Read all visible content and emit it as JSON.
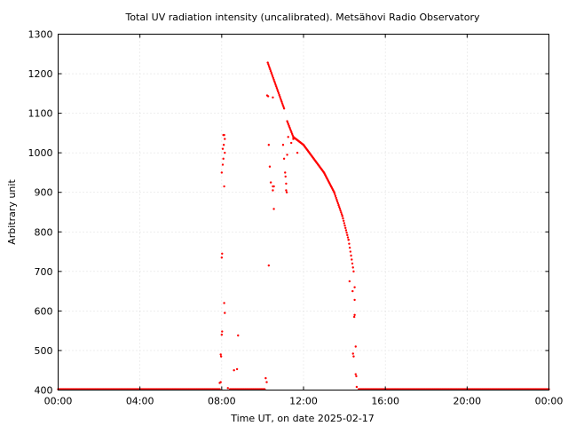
{
  "chart_data": {
    "type": "scatter",
    "title": "Total UV radiation intensity (uncalibrated). Metsähovi Radio Observatory",
    "xlabel": "Time UT, on date 2025-02-17",
    "ylabel": "Arbitrary unit",
    "x_unit": "hours UT",
    "xlim": [
      0,
      24
    ],
    "ylim": [
      400,
      1300
    ],
    "x_ticks": [
      0,
      4,
      8,
      12,
      16,
      20,
      24
    ],
    "x_tick_labels": [
      "00:00",
      "04:00",
      "08:00",
      "12:00",
      "16:00",
      "20:00",
      "00:00"
    ],
    "y_ticks": [
      400,
      500,
      600,
      700,
      800,
      900,
      1000,
      1100,
      1200,
      1300
    ],
    "y_tick_labels": [
      "400",
      "500",
      "600",
      "700",
      "800",
      "900",
      "1000",
      "1100",
      "1200",
      "1300"
    ],
    "grid": true,
    "point_color": "#ff0000",
    "series": [
      {
        "points": [
          [
            7.95,
            490
          ],
          [
            7.97,
            485
          ],
          [
            8.0,
            540
          ],
          [
            8.02,
            548
          ],
          [
            8.0,
            735
          ],
          [
            8.02,
            745
          ],
          [
            8.0,
            950
          ],
          [
            8.05,
            970
          ],
          [
            8.08,
            985
          ],
          [
            8.05,
            1010
          ],
          [
            8.1,
            1020
          ],
          [
            8.08,
            1045
          ],
          [
            8.12,
            1045
          ],
          [
            8.15,
            1035
          ],
          [
            8.15,
            1000
          ],
          [
            8.12,
            915
          ],
          [
            8.12,
            620
          ],
          [
            8.15,
            595
          ],
          [
            8.6,
            450
          ],
          [
            8.75,
            453
          ],
          [
            8.8,
            538
          ],
          [
            7.9,
            418
          ],
          [
            7.95,
            420
          ],
          [
            8.3,
            405
          ],
          [
            10.15,
            430
          ],
          [
            10.2,
            420
          ],
          [
            10.22,
            1145
          ],
          [
            10.27,
            1143
          ],
          [
            10.3,
            1020
          ],
          [
            10.3,
            715
          ],
          [
            10.35,
            965
          ],
          [
            10.4,
            925
          ],
          [
            10.5,
            915
          ],
          [
            10.5,
            905
          ],
          [
            10.55,
            915
          ],
          [
            10.55,
            858
          ],
          [
            10.5,
            1140
          ],
          [
            11.0,
            1020
          ],
          [
            11.05,
            985
          ],
          [
            11.1,
            950
          ],
          [
            11.12,
            940
          ],
          [
            11.15,
            922
          ],
          [
            11.15,
            905
          ],
          [
            11.18,
            900
          ],
          [
            11.2,
            995
          ],
          [
            11.25,
            1040
          ],
          [
            11.4,
            1025
          ],
          [
            11.5,
            1035
          ],
          [
            11.7,
            1000
          ],
          [
            14.25,
            675
          ],
          [
            14.4,
            650
          ],
          [
            14.5,
            660
          ],
          [
            14.5,
            628
          ],
          [
            14.5,
            590
          ],
          [
            14.48,
            585
          ],
          [
            14.42,
            492
          ],
          [
            14.45,
            485
          ],
          [
            14.55,
            510
          ],
          [
            14.55,
            440
          ],
          [
            14.58,
            435
          ],
          [
            14.6,
            408
          ]
        ],
        "curves": [
          {
            "from": 0,
            "to": 7.9,
            "y": [
              402,
              402
            ]
          },
          {
            "from": 8.4,
            "to": 10.1,
            "y": [
              402,
              402
            ]
          },
          {
            "from": 14.7,
            "to": 24,
            "y": [
              402,
              402
            ]
          },
          {
            "from": 10.25,
            "to": 11.05,
            "y": [
              1228,
              1112
            ]
          },
          {
            "from": 11.2,
            "to": 11.5,
            "y": [
              1080,
              1040
            ]
          },
          {
            "from": 11.5,
            "to": 12.0,
            "y": [
              1040,
              1020
            ]
          },
          {
            "from": 12.0,
            "to": 13.0,
            "y": [
              1020,
              950
            ]
          },
          {
            "from": 13.0,
            "to": 13.5,
            "y": [
              950,
              900
            ]
          },
          {
            "from": 13.5,
            "to": 13.9,
            "y": [
              900,
              840
            ]
          },
          {
            "from": 13.9,
            "to": 14.2,
            "y": [
              840,
              780
            ]
          },
          {
            "from": 14.2,
            "to": 14.45,
            "y": [
              780,
              700
            ]
          }
        ]
      }
    ]
  }
}
